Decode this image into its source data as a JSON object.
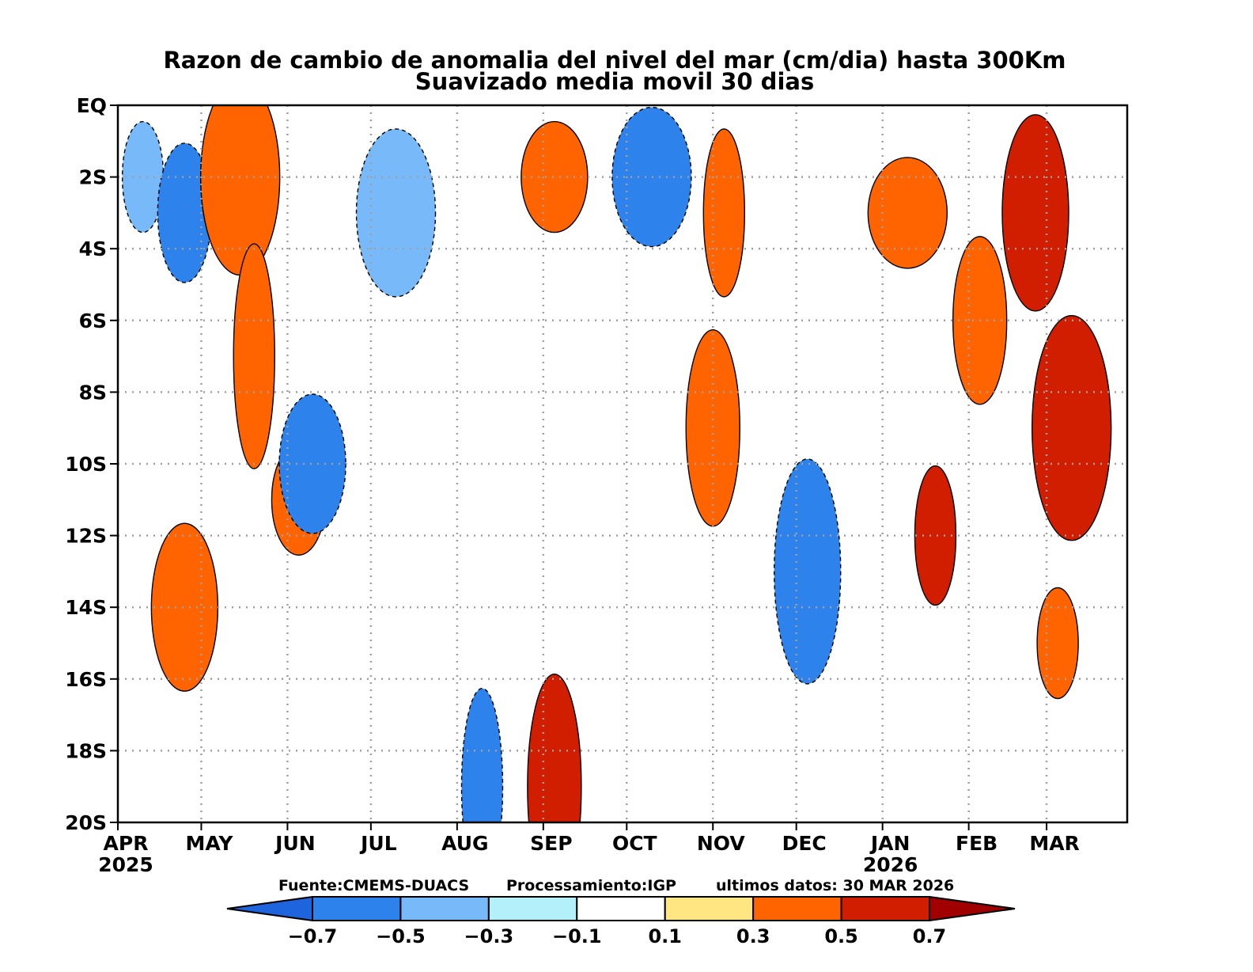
{
  "chart_data": {
    "type": "heatmap",
    "title": "Razon de cambio de anomalia del nivel del mar (cm/dia) hasta 300Km",
    "subtitle": "Suavizado media movil 30 dias",
    "x_tick_labels": [
      "APR",
      "MAY",
      "JUN",
      "JUL",
      "AUG",
      "SEP",
      "OCT",
      "NOV",
      "DEC",
      "JAN",
      "FEB",
      "MAR"
    ],
    "x_year_labels": [
      {
        "label": "2025",
        "month": "APR"
      },
      {
        "label": "2026",
        "month": "JAN"
      }
    ],
    "y_tick_labels": [
      "EQ",
      "2S",
      "4S",
      "6S",
      "8S",
      "10S",
      "12S",
      "14S",
      "16S",
      "18S",
      "20S"
    ],
    "xlim": [
      "2025-04-01",
      "2026-03-30"
    ],
    "ylim": [
      0,
      -20
    ],
    "grid": true,
    "source": "Fuente:CMEMS-DUACS",
    "processing": "Processamiento:IGP",
    "last_data": "ultimos  datos:  30  MAR  2026",
    "colorbar": {
      "levels": [
        -0.7,
        -0.5,
        -0.3,
        -0.1,
        0.1,
        0.3,
        0.5,
        0.7
      ],
      "level_labels": [
        "-0.7",
        "-0.5",
        "-0.3",
        "-0.1",
        "0.1",
        "0.3",
        "0.5",
        "0.7"
      ],
      "colors": [
        "#1e64dc",
        "#2d82eb",
        "#78b9fa",
        "#b4f0fa",
        "#ffffff",
        "#ffe682",
        "#ff6400",
        "#d21e00",
        "#a00000"
      ]
    },
    "cells": [
      {
        "t": "2025-04-10",
        "lat": -2,
        "v": -0.35
      },
      {
        "t": "2025-04-25",
        "lat": -3,
        "v": -0.6
      },
      {
        "t": "2025-04-25",
        "lat": -14,
        "v": 0.4
      },
      {
        "t": "2025-05-15",
        "lat": -2,
        "v": 0.4
      },
      {
        "t": "2025-05-20",
        "lat": -7,
        "v": 0.45
      },
      {
        "t": "2025-06-05",
        "lat": -11,
        "v": 0.45
      },
      {
        "t": "2025-06-10",
        "lat": -10,
        "v": -0.55
      },
      {
        "t": "2025-07-10",
        "lat": -3,
        "v": -0.3
      },
      {
        "t": "2025-08-10",
        "lat": -19,
        "v": -0.55
      },
      {
        "t": "2025-09-05",
        "lat": -19,
        "v": 0.55
      },
      {
        "t": "2025-09-05",
        "lat": -2,
        "v": 0.45
      },
      {
        "t": "2025-10-10",
        "lat": -2,
        "v": -0.5
      },
      {
        "t": "2025-11-05",
        "lat": -3,
        "v": 0.4
      },
      {
        "t": "2025-11-01",
        "lat": -9,
        "v": 0.4
      },
      {
        "t": "2025-12-05",
        "lat": -13,
        "v": -0.5
      },
      {
        "t": "2026-01-10",
        "lat": -3,
        "v": 0.5
      },
      {
        "t": "2026-01-20",
        "lat": -12,
        "v": 0.55
      },
      {
        "t": "2026-02-05",
        "lat": -6,
        "v": 0.4
      },
      {
        "t": "2026-02-25",
        "lat": -3,
        "v": 0.55
      },
      {
        "t": "2026-03-10",
        "lat": -9,
        "v": 0.6
      },
      {
        "t": "2026-03-05",
        "lat": -15,
        "v": 0.45
      }
    ]
  }
}
